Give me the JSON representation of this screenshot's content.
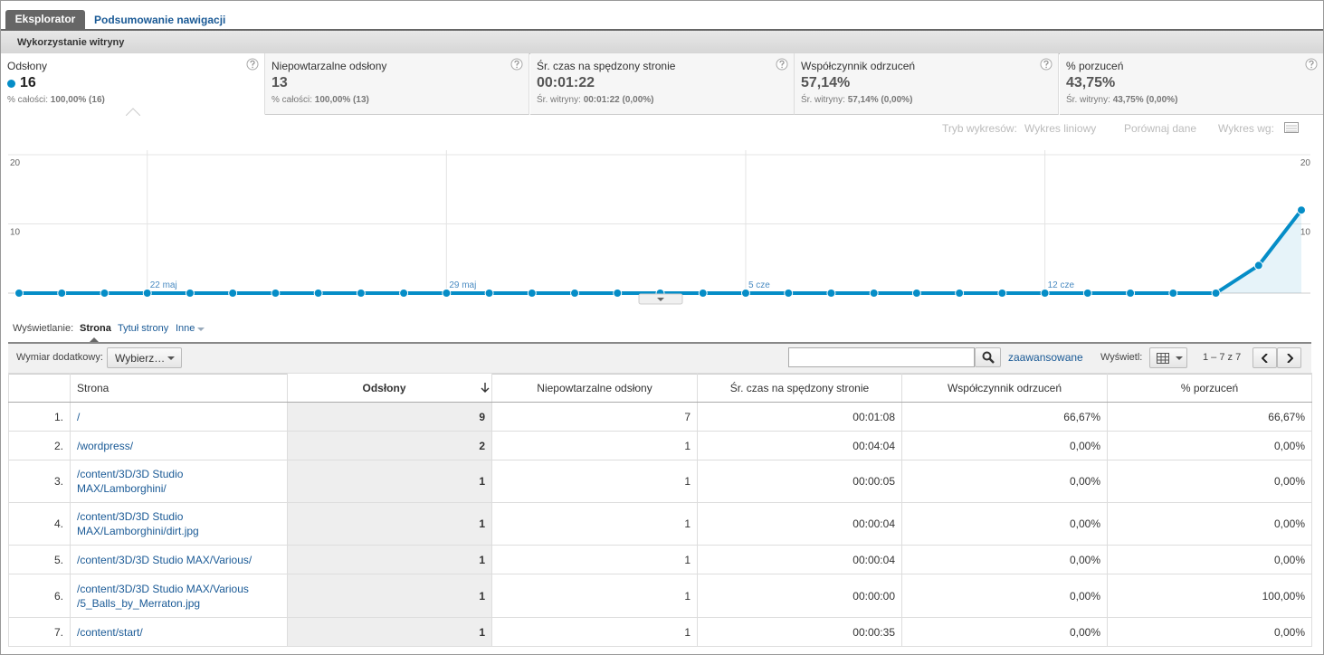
{
  "tabs": [
    "Eksplorator",
    "Podsumowanie nawigacji"
  ],
  "section": "Wykorzystanie witryny",
  "scorecards": [
    {
      "label": "Odsłony",
      "value": "16",
      "sub_label": "% całości:",
      "sub_value": "100,00% (16)"
    },
    {
      "label": "Niepowtarzalne odsłony",
      "value": "13",
      "sub_label": "% całości:",
      "sub_value": "100,00% (13)"
    },
    {
      "label": "Śr. czas na spędzony stronie",
      "value": "00:01:22",
      "sub_label": "Śr. witryny:",
      "sub_value": "00:01:22 (0,00%)"
    },
    {
      "label": "Współczynnik odrzuceń",
      "value": "57,14%",
      "sub_label": "Śr. witryny:",
      "sub_value": "57,14% (0,00%)"
    },
    {
      "label": "% porzuceń",
      "value": "43,75%",
      "sub_label": "Śr. witryny:",
      "sub_value": "43,75% (0,00%)"
    }
  ],
  "chart_options": {
    "mode_label": "Tryb wykresów:",
    "mode": "Wykres liniowy",
    "compare": "Porównaj dane",
    "by_label": "Wykres wg:"
  },
  "chart_data": {
    "type": "line",
    "categories": [
      null,
      null,
      null,
      "22 maj",
      null,
      null,
      null,
      null,
      null,
      null,
      "29 maj",
      null,
      null,
      null,
      null,
      null,
      null,
      "5 cze",
      null,
      null,
      null,
      null,
      null,
      null,
      "12 cze",
      null,
      null,
      null,
      null,
      null,
      null
    ],
    "values": [
      0,
      0,
      0,
      0,
      0,
      0,
      0,
      0,
      0,
      0,
      0,
      0,
      0,
      0,
      0,
      0,
      0,
      0,
      0,
      0,
      0,
      0,
      0,
      0,
      0,
      0,
      0,
      0,
      0,
      4,
      12
    ],
    "color": "#058dc7",
    "ylim": [
      0,
      20
    ],
    "yticks": [
      10,
      20
    ],
    "y2lim": [
      0,
      20
    ],
    "y2ticks": [
      10,
      20
    ],
    "grid": true
  },
  "view": {
    "label": "Wyświetlanie:",
    "options": [
      "Strona",
      "Tytuł strony",
      "Inne"
    ]
  },
  "toolbar": {
    "dimension_label": "Wymiar dodatkowy:",
    "dimension_button": "Wybierz…",
    "advanced": "zaawansowane",
    "display_label": "Wyświetl:",
    "pagination": "1 – 7 z 7"
  },
  "table": {
    "columns": [
      "Strona",
      "Odsłony",
      "Niepowtarzalne odsłony",
      "Śr. czas na spędzony stronie",
      "Współczynnik odrzuceń",
      "% porzuceń"
    ],
    "rows": [
      {
        "index": "1.",
        "page": [
          "/"
        ],
        "values": [
          "9",
          "7",
          "00:01:08",
          "66,67%",
          "66,67%"
        ]
      },
      {
        "index": "2.",
        "page": [
          "/wordpress/"
        ],
        "values": [
          "2",
          "1",
          "00:04:04",
          "0,00%",
          "0,00%"
        ]
      },
      {
        "index": "3.",
        "page": [
          "/content/3D/3D Studio",
          "MAX/Lamborghini/"
        ],
        "values": [
          "1",
          "1",
          "00:00:05",
          "0,00%",
          "0,00%"
        ]
      },
      {
        "index": "4.",
        "page": [
          "/content/3D/3D Studio",
          "MAX/Lamborghini/dirt.jpg"
        ],
        "values": [
          "1",
          "1",
          "00:00:04",
          "0,00%",
          "0,00%"
        ]
      },
      {
        "index": "5.",
        "page": [
          "/content/3D/3D Studio MAX/Various/"
        ],
        "values": [
          "1",
          "1",
          "00:00:04",
          "0,00%",
          "0,00%"
        ]
      },
      {
        "index": "6.",
        "page": [
          "/content/3D/3D Studio MAX/Various",
          "/5_Balls_by_Merraton.jpg"
        ],
        "values": [
          "1",
          "1",
          "00:00:00",
          "0,00%",
          "100,00%"
        ]
      },
      {
        "index": "7.",
        "page": [
          "/content/start/"
        ],
        "values": [
          "1",
          "1",
          "00:00:35",
          "0,00%",
          "0,00%"
        ]
      }
    ]
  }
}
